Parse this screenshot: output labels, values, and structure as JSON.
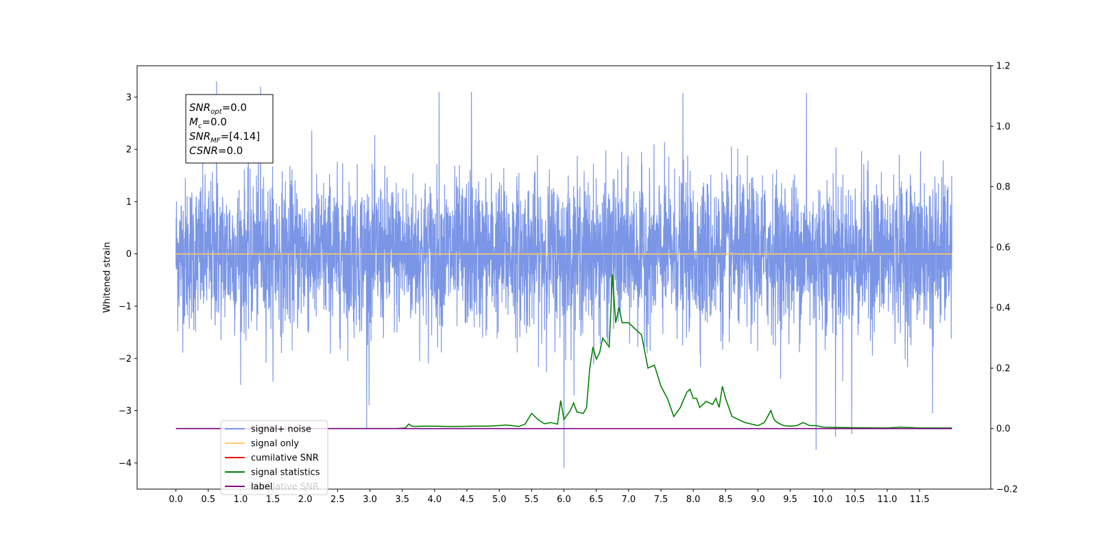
{
  "chart_data": {
    "type": "line",
    "ylabel": "Whitened strain",
    "xlim": [
      -0.6,
      12.6
    ],
    "ylim_left": [
      -4.5,
      3.6
    ],
    "ylim_right": [
      -0.2,
      1.2
    ],
    "x_ticks": [
      "0.0",
      "0.5",
      "1.0",
      "1.5",
      "2.0",
      "2.5",
      "3.0",
      "3.5",
      "4.0",
      "4.5",
      "5.0",
      "5.5",
      "6.0",
      "6.5",
      "7.0",
      "7.5",
      "8.0",
      "8.5",
      "9.0",
      "9.5",
      "10.0",
      "10.5",
      "11.0",
      "11.5"
    ],
    "y_left_ticks": [
      "−4",
      "−3",
      "−2",
      "−1",
      "0",
      "1",
      "2",
      "3"
    ],
    "y_right_ticks": [
      "−0.2",
      "0.0",
      "0.2",
      "0.4",
      "0.6",
      "0.8",
      "1.0",
      "1.2"
    ],
    "legend_location": "lower-left",
    "legend": [
      {
        "label": "signal+ noise",
        "color": "#7b96e6"
      },
      {
        "label": "signal only",
        "color": "#ffc966"
      },
      {
        "label": "cumilative SNR",
        "color": "#ff0000"
      },
      {
        "label": "signal statistics",
        "color": "#008000"
      },
      {
        "label": "label",
        "color": "#800080"
      }
    ],
    "legend_hidden_text": "cumilative SNR",
    "annotation": {
      "lines": [
        {
          "main": "SNR",
          "sub": "opt",
          "value": "=0.0"
        },
        {
          "main": "M",
          "sub": "c",
          "value": "=0.0"
        },
        {
          "main": "SNR",
          "sub": "MF",
          "value": "=[4.14]"
        },
        {
          "main": "CSNR",
          "sub": "",
          "value": "=0.0"
        }
      ]
    },
    "series": [
      {
        "name": "signal+ noise",
        "axis": "left",
        "color": "#7b96e6",
        "x_range": [
          0.0,
          12.0
        ],
        "typical_range": [
          -1.5,
          1.5
        ],
        "extremes": [
          {
            "x": 0.63,
            "y": 3.3
          },
          {
            "x": 1.31,
            "y": 3.2
          },
          {
            "x": 4.07,
            "y": 3.1
          },
          {
            "x": 4.57,
            "y": 3.1
          },
          {
            "x": 7.84,
            "y": 3.08
          },
          {
            "x": 9.75,
            "y": 3.08
          },
          {
            "x": 6.0,
            "y": -4.1
          },
          {
            "x": 9.9,
            "y": -3.75
          },
          {
            "x": 2.95,
            "y": -3.35
          },
          {
            "x": 10.2,
            "y": -3.5
          },
          {
            "x": 10.45,
            "y": -3.45
          },
          {
            "x": 11.7,
            "y": -3.05
          }
        ]
      },
      {
        "name": "signal only",
        "axis": "left",
        "color": "#ffc966",
        "x": [
          0.0,
          12.0
        ],
        "y": [
          0.0,
          0.0
        ]
      },
      {
        "name": "signal statistics",
        "axis": "right",
        "color": "#008000",
        "x": [
          0.0,
          3.4,
          3.55,
          3.6,
          3.65,
          3.7,
          3.8,
          4.0,
          4.2,
          4.4,
          4.6,
          4.8,
          5.0,
          5.1,
          5.2,
          5.3,
          5.4,
          5.5,
          5.6,
          5.7,
          5.8,
          5.9,
          5.95,
          6.0,
          6.1,
          6.15,
          6.2,
          6.3,
          6.35,
          6.4,
          6.45,
          6.5,
          6.55,
          6.6,
          6.7,
          6.75,
          6.8,
          6.85,
          6.9,
          7.0,
          7.1,
          7.2,
          7.3,
          7.4,
          7.5,
          7.6,
          7.7,
          7.8,
          7.9,
          7.95,
          8.0,
          8.05,
          8.1,
          8.2,
          8.3,
          8.35,
          8.4,
          8.45,
          8.5,
          8.55,
          8.6,
          8.7,
          8.8,
          8.9,
          9.0,
          9.1,
          9.2,
          9.25,
          9.3,
          9.4,
          9.5,
          9.6,
          9.7,
          9.8,
          9.9,
          10.0,
          10.5,
          11.0,
          11.2,
          11.5,
          12.0
        ],
        "y": [
          0.0,
          0.0,
          0.002,
          0.015,
          0.008,
          0.007,
          0.008,
          0.008,
          0.007,
          0.007,
          0.008,
          0.008,
          0.01,
          0.012,
          0.01,
          0.007,
          0.015,
          0.05,
          0.03,
          0.016,
          0.02,
          0.015,
          0.093,
          0.03,
          0.06,
          0.085,
          0.055,
          0.05,
          0.07,
          0.2,
          0.27,
          0.23,
          0.25,
          0.3,
          0.27,
          0.51,
          0.35,
          0.4,
          0.35,
          0.35,
          0.33,
          0.31,
          0.2,
          0.21,
          0.14,
          0.1,
          0.04,
          0.07,
          0.12,
          0.13,
          0.1,
          0.1,
          0.07,
          0.09,
          0.08,
          0.1,
          0.07,
          0.14,
          0.1,
          0.07,
          0.04,
          0.03,
          0.02,
          0.015,
          0.01,
          0.02,
          0.06,
          0.03,
          0.02,
          0.01,
          0.008,
          0.01,
          0.02,
          0.01,
          0.01,
          0.005,
          0.003,
          0.002,
          0.005,
          0.002,
          0.002
        ]
      },
      {
        "name": "label",
        "axis": "right",
        "color": "#800080",
        "x": [
          0.0,
          12.0
        ],
        "y": [
          0.0,
          0.0
        ]
      }
    ]
  }
}
